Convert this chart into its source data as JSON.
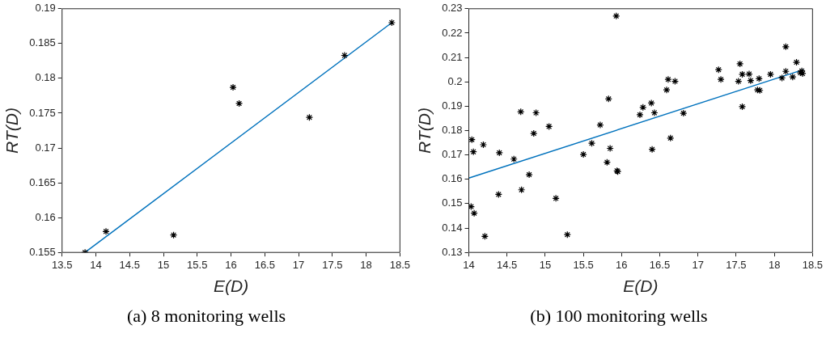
{
  "chart_data": [
    {
      "type": "scatter",
      "xlabel": "E(D)",
      "ylabel": "RT(D)",
      "annotations": [
        "(a) 8 monitoring wells"
      ],
      "xlim": [
        13.5,
        18.5
      ],
      "xticks": [
        13.5,
        14,
        14.5,
        15,
        15.5,
        16,
        16.5,
        17,
        17.5,
        18,
        18.5
      ],
      "ylim": [
        0.155,
        0.19
      ],
      "yticks": [
        0.155,
        0.16,
        0.165,
        0.17,
        0.175,
        0.18,
        0.185,
        0.19
      ],
      "grid": false,
      "legend": false,
      "series": [
        {
          "color": "#000000",
          "marker": "cross",
          "x": [
            13.84,
            14.15,
            15.15,
            16.03,
            16.12,
            17.16,
            17.68,
            18.38
          ],
          "values": [
            0.155,
            0.158,
            0.1575,
            0.1787,
            0.1764,
            0.1744,
            0.1833,
            0.188
          ]
        },
        {
          "type": "line",
          "color": "#0072bd",
          "marker": "none",
          "line_style": "solid",
          "x": [
            13.84,
            18.38
          ],
          "values": [
            0.155,
            0.188
          ]
        }
      ]
    },
    {
      "type": "scatter",
      "xlabel": "E(D)",
      "ylabel": "RT(D)",
      "annotations": [
        "(b) 100 monitoring wells"
      ],
      "xlim": [
        14,
        18.5
      ],
      "xticks": [
        14,
        14.5,
        15,
        15.5,
        16,
        16.5,
        17,
        17.5,
        18,
        18.5
      ],
      "ylim": [
        0.13,
        0.23
      ],
      "yticks": [
        0.13,
        0.14,
        0.15,
        0.16,
        0.17,
        0.18,
        0.19,
        0.2,
        0.21,
        0.22,
        0.23
      ],
      "grid": false,
      "legend": false,
      "series": [
        {
          "color": "#000000",
          "marker": "cross",
          "x": [
            14.04,
            14.06,
            14.19,
            14.4,
            14.59,
            14.68,
            14.88,
            14.85,
            15.05,
            14.79,
            14.69,
            14.39,
            14.03,
            14.07,
            14.21,
            15.14,
            15.29,
            15.5,
            15.61,
            15.72,
            15.83,
            15.93,
            15.85,
            15.81,
            15.95,
            15.94,
            16.24,
            16.28,
            16.39,
            16.43,
            16.4,
            16.59,
            16.61,
            16.7,
            16.64,
            16.81,
            17.27,
            17.3,
            17.55,
            17.53,
            17.58,
            17.67,
            17.69,
            17.8,
            17.58,
            17.78,
            17.81,
            17.95,
            18.1,
            18.15,
            18.15,
            18.24,
            18.29,
            18.36,
            18.37,
            18.34
          ],
          "values": [
            0.1763,
            0.1713,
            0.1742,
            0.1709,
            0.1683,
            0.1877,
            0.1873,
            0.1788,
            0.1817,
            0.1619,
            0.1557,
            0.1538,
            0.1488,
            0.1461,
            0.1366,
            0.1522,
            0.1373,
            0.1702,
            0.1748,
            0.1823,
            0.193,
            0.227,
            0.1727,
            0.167,
            0.1632,
            0.1635,
            0.1865,
            0.1895,
            0.1913,
            0.1873,
            0.1723,
            0.1967,
            0.201,
            0.2002,
            0.1769,
            0.1871,
            0.205,
            0.201,
            0.2074,
            0.2002,
            0.2031,
            0.2032,
            0.2005,
            0.2013,
            0.1898,
            0.1967,
            0.1965,
            0.2031,
            0.2016,
            0.2144,
            0.2043,
            0.202,
            0.208,
            0.2045,
            0.2034,
            0.2037
          ]
        },
        {
          "type": "line",
          "color": "#0072bd",
          "marker": "none",
          "line_style": "solid",
          "x": [
            14,
            18.38
          ],
          "values": [
            0.1605,
            0.205
          ]
        }
      ]
    }
  ]
}
